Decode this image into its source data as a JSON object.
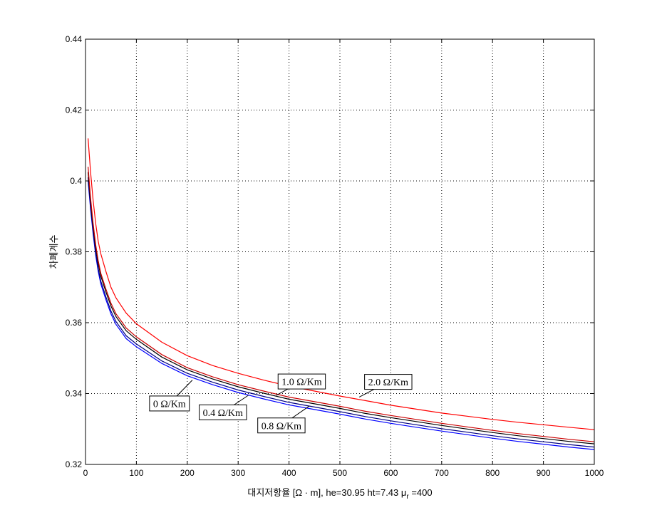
{
  "chart_data": {
    "type": "line",
    "title": "",
    "xlabel": "대지저항율 [Ω · m], he=30.95 ht=7.43 μr =400",
    "xlabel_parts": {
      "main": "대지저항율 [Ω · m], he=30.95 ht=7.43 μ",
      "sub": "r",
      "tail": " =400"
    },
    "ylabel": "차폐계수",
    "xlim": [
      0,
      1000
    ],
    "ylim": [
      0.32,
      0.44
    ],
    "x_ticks": [
      0,
      100,
      200,
      300,
      400,
      500,
      600,
      700,
      800,
      900,
      1000
    ],
    "x_tick_labels": [
      "0",
      "100",
      "200",
      "300",
      "400",
      "500",
      "600",
      "700",
      "800",
      "900",
      "1000"
    ],
    "y_ticks": [
      0.32,
      0.34,
      0.36,
      0.38,
      0.4,
      0.42,
      0.44
    ],
    "y_tick_labels": [
      "0.32",
      "0.34",
      "0.36",
      "0.38",
      "0.4",
      "0.42",
      "0.44"
    ],
    "grid": true,
    "x": [
      5,
      10,
      15,
      20,
      25,
      30,
      40,
      50,
      60,
      70,
      80,
      100,
      150,
      200,
      250,
      300,
      350,
      400,
      450,
      500,
      550,
      600,
      650,
      700,
      750,
      800,
      850,
      900,
      950,
      1000
    ],
    "series": [
      {
        "name": "0 Ω/Km",
        "color": "#0000ff",
        "values": [
          0.4,
          0.392,
          0.385,
          0.379,
          0.3745,
          0.371,
          0.3665,
          0.3625,
          0.3595,
          0.3575,
          0.3555,
          0.3532,
          0.3485,
          0.345,
          0.3425,
          0.3403,
          0.3385,
          0.3368,
          0.3355,
          0.3342,
          0.3328,
          0.3316,
          0.3305,
          0.3294,
          0.3284,
          0.3274,
          0.3265,
          0.3257,
          0.3249,
          0.3242
        ]
      },
      {
        "name": "0.4 Ω/Km",
        "color": "#000080",
        "values": [
          0.401,
          0.3928,
          0.3858,
          0.3798,
          0.3753,
          0.3718,
          0.3673,
          0.3633,
          0.3603,
          0.3583,
          0.3563,
          0.354,
          0.3492,
          0.3457,
          0.3432,
          0.341,
          0.3392,
          0.3375,
          0.3362,
          0.3349,
          0.3335,
          0.3323,
          0.3312,
          0.3301,
          0.3291,
          0.3281,
          0.3272,
          0.3264,
          0.3256,
          0.3249
        ]
      },
      {
        "name": "0.8 Ω/Km",
        "color": "#000000",
        "values": [
          0.4025,
          0.3942,
          0.3872,
          0.3812,
          0.3767,
          0.3732,
          0.3687,
          0.3647,
          0.3617,
          0.3597,
          0.3577,
          0.3553,
          0.3503,
          0.3467,
          0.3441,
          0.3419,
          0.3401,
          0.3384,
          0.3371,
          0.3358,
          0.3344,
          0.3332,
          0.3321,
          0.331,
          0.33,
          0.329,
          0.3281,
          0.3273,
          0.3265,
          0.3258
        ]
      },
      {
        "name": "1.0 Ω/Km",
        "color": "#cc0000",
        "values": [
          0.404,
          0.3952,
          0.388,
          0.382,
          0.3775,
          0.374,
          0.3695,
          0.3655,
          0.3625,
          0.3605,
          0.3585,
          0.356,
          0.351,
          0.3473,
          0.3447,
          0.3425,
          0.3407,
          0.339,
          0.3377,
          0.3364,
          0.335,
          0.3338,
          0.3327,
          0.3316,
          0.3306,
          0.3296,
          0.3287,
          0.3279,
          0.3271,
          0.3264
        ]
      },
      {
        "name": "2.0 Ω/Km",
        "color": "#ff0000",
        "values": [
          0.412,
          0.4025,
          0.3945,
          0.388,
          0.383,
          0.3795,
          0.3745,
          0.37,
          0.367,
          0.3648,
          0.3627,
          0.3597,
          0.3545,
          0.3507,
          0.3479,
          0.3457,
          0.3438,
          0.3421,
          0.3407,
          0.3393,
          0.338,
          0.3367,
          0.3356,
          0.3345,
          0.3336,
          0.3327,
          0.3319,
          0.3312,
          0.3305,
          0.3298
        ]
      }
    ],
    "annotations": [
      {
        "text": "0 Ω/Km",
        "text_at": [
          165,
          0.3372
        ],
        "arrow_to": [
          210,
          0.3438
        ]
      },
      {
        "text": "0.4 Ω/Km",
        "text_at": [
          270,
          0.3347
        ],
        "arrow_to": [
          320,
          0.3395
        ]
      },
      {
        "text": "0.8 Ω/Km",
        "text_at": [
          385,
          0.331
        ],
        "arrow_to": [
          440,
          0.3365
        ]
      },
      {
        "text": "1.0 Ω/Km",
        "text_at": [
          425,
          0.3434
        ],
        "arrow_to": [
          375,
          0.3395
        ]
      },
      {
        "text": "2.0 Ω/Km",
        "text_at": [
          595,
          0.3433
        ],
        "arrow_to": [
          538,
          0.339
        ]
      }
    ]
  }
}
